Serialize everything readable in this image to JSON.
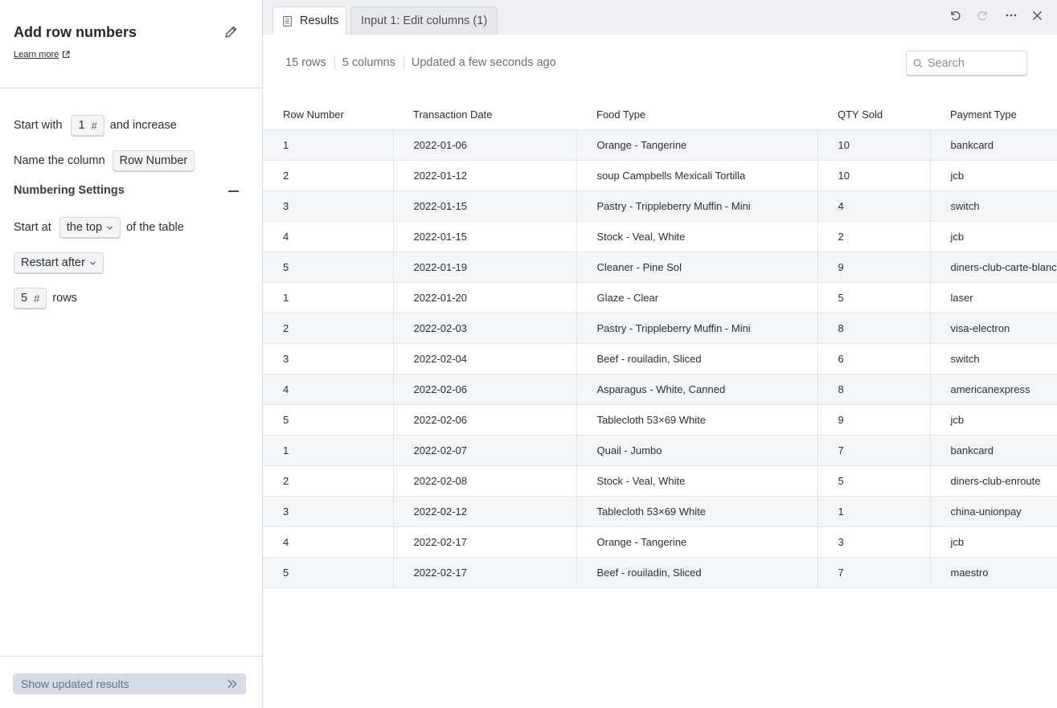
{
  "panel": {
    "title": "Add row numbers",
    "learn_more": "Learn more",
    "start_with_label": "Start with",
    "start_with_value": "1",
    "and_increase": "and increase",
    "name_column_label": "Name the column",
    "column_name_value": "Row Number",
    "numbering_settings": "Numbering Settings",
    "start_at_label": "Start at",
    "start_at_value": "the top",
    "of_the_table": "of the table",
    "restart_value": "Restart after",
    "restart_rows_value": "5",
    "rows_label": "rows",
    "hash": "#",
    "show_updated": "Show updated results"
  },
  "tabs": {
    "results": "Results",
    "input": "Input 1: Edit columns (1)"
  },
  "meta": {
    "rows": "15 rows",
    "columns": "5 columns",
    "updated": "Updated a few seconds ago"
  },
  "search": {
    "placeholder": "Search"
  },
  "table": {
    "headers": [
      "Row Number",
      "Transaction Date",
      "Food Type",
      "QTY Sold",
      "Payment Type"
    ],
    "rows": [
      [
        "1",
        "2022-01-06",
        "Orange - Tangerine",
        "10",
        "bankcard"
      ],
      [
        "2",
        "2022-01-12",
        "soup Campbells Mexicali Tortilla",
        "10",
        "jcb"
      ],
      [
        "3",
        "2022-01-15",
        "Pastry - Trippleberry Muffin - Mini",
        "4",
        "switch"
      ],
      [
        "4",
        "2022-01-15",
        "Stock - Veal, White",
        "2",
        "jcb"
      ],
      [
        "5",
        "2022-01-19",
        "Cleaner - Pine Sol",
        "9",
        "diners-club-carte-blanche"
      ],
      [
        "1",
        "2022-01-20",
        "Glaze - Clear",
        "5",
        "laser"
      ],
      [
        "2",
        "2022-02-03",
        "Pastry - Trippleberry Muffin - Mini",
        "8",
        "visa-electron"
      ],
      [
        "3",
        "2022-02-04",
        "Beef - rouiladin, Sliced",
        "6",
        "switch"
      ],
      [
        "4",
        "2022-02-06",
        "Asparagus - White, Canned",
        "8",
        "americanexpress"
      ],
      [
        "5",
        "2022-02-06",
        "Tablecloth 53×69 White",
        "9",
        "jcb"
      ],
      [
        "1",
        "2022-02-07",
        "Quail - Jumbo",
        "7",
        "bankcard"
      ],
      [
        "2",
        "2022-02-08",
        "Stock - Veal, White",
        "5",
        "diners-club-enroute"
      ],
      [
        "3",
        "2022-02-12",
        "Tablecloth 53×69 White",
        "1",
        "china-unionpay"
      ],
      [
        "4",
        "2022-02-17",
        "Orange - Tangerine",
        "3",
        "jcb"
      ],
      [
        "5",
        "2022-02-17",
        "Beef - rouiladin, Sliced",
        "7",
        "maestro"
      ]
    ]
  }
}
